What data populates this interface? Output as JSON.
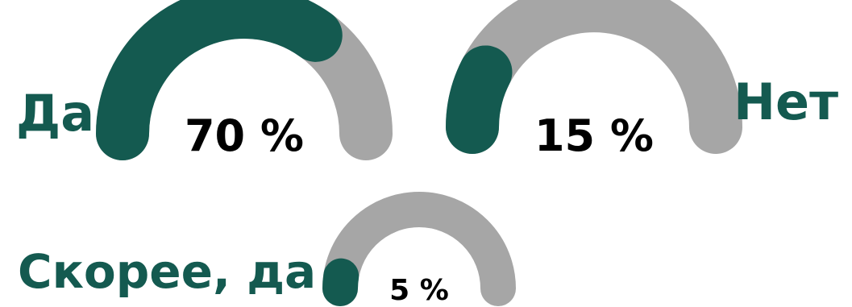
{
  "colors": {
    "value": "#145a50",
    "track": "#a6a6a6",
    "label_text": "#145a50",
    "value_text": "#000000"
  },
  "chart_data": {
    "type": "gauge",
    "title": "",
    "unit": "%",
    "range": [
      0,
      100
    ],
    "gauges": [
      {
        "category": "Да",
        "value": 70,
        "value_label": "70 %"
      },
      {
        "category": "Нет",
        "value": 15,
        "value_label": "15 %"
      },
      {
        "category": "Скорее, да",
        "value": 5,
        "value_label": "5 %"
      }
    ]
  }
}
